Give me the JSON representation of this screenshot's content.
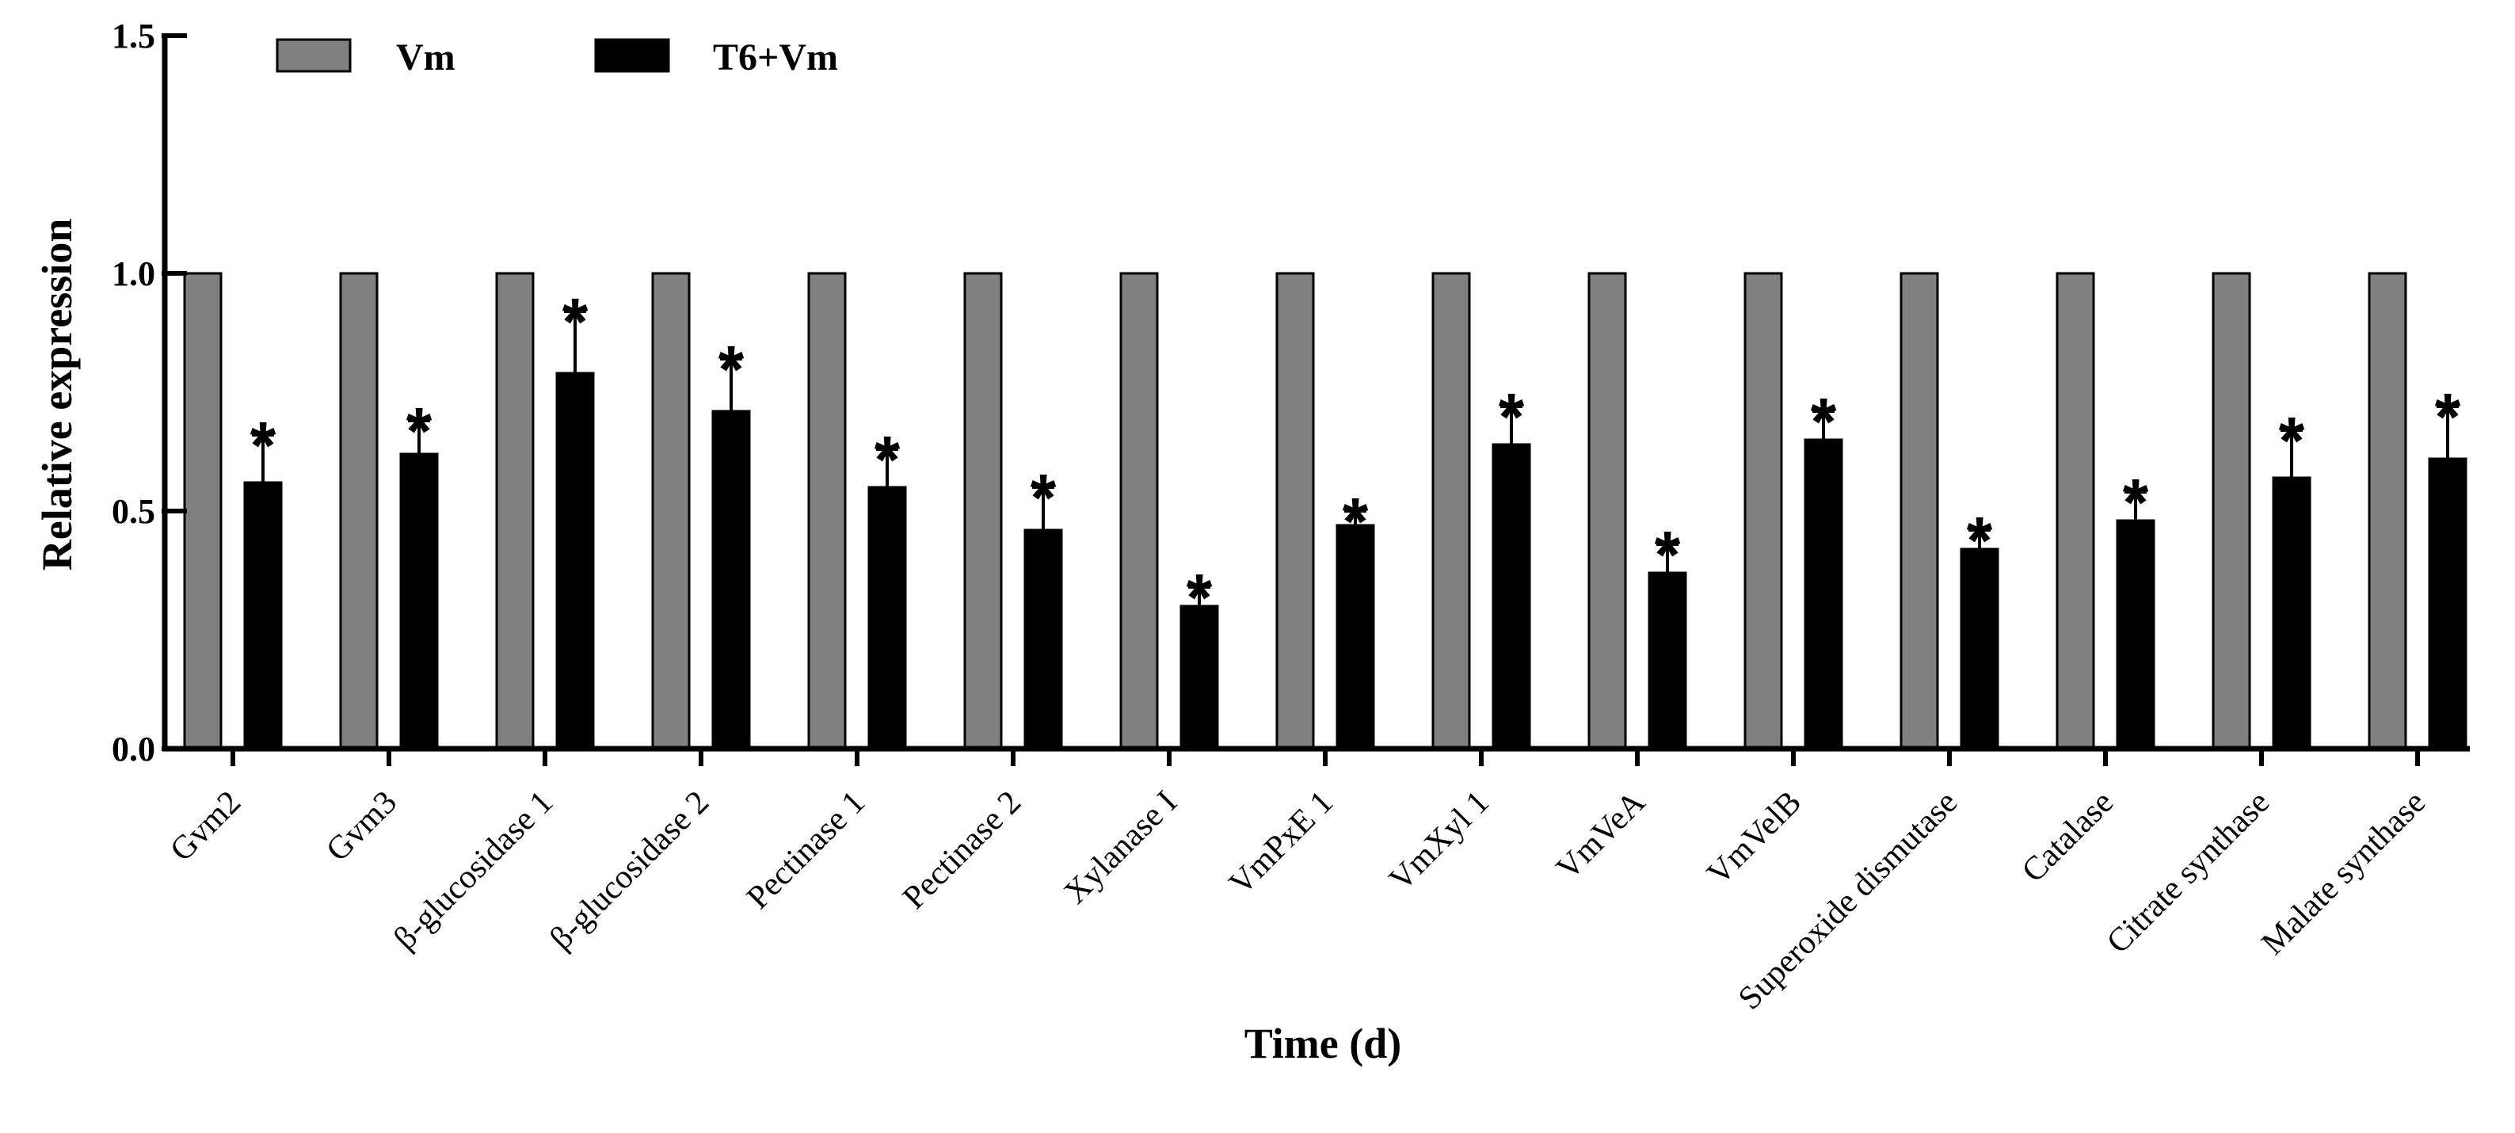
{
  "chart_data": {
    "type": "bar",
    "title": "",
    "xlabel": "Time (d)",
    "ylabel": "Relative expression",
    "ylim": [
      0,
      1.5
    ],
    "yticks": [
      "0.0",
      "0.5",
      "1.0",
      "1.5"
    ],
    "ytick_values": [
      0,
      0.5,
      1.0,
      1.5
    ],
    "legend_position": "top-left",
    "categories": [
      "Gvm2",
      "Gvm3",
      "β-glucosidase 1",
      "β-glucosidase 2",
      "Pectinase 1",
      "Pectinase 2",
      "Xylanase  I",
      "VmPxE 1",
      "VmXyl 1",
      "VmVeA",
      "VmVelB",
      "Superoxide dismutase",
      "Catalase",
      "Citrate synthase",
      "Malate synthase"
    ],
    "series": [
      {
        "name": "Vm",
        "color": "#808080",
        "values": [
          1,
          1,
          1,
          1,
          1,
          1,
          1,
          1,
          1,
          1,
          1,
          1,
          1,
          1,
          1
        ],
        "errors": [
          0,
          0,
          0,
          0,
          0,
          0,
          0,
          0,
          0,
          0,
          0,
          0,
          0,
          0,
          0
        ]
      },
      {
        "name": "T6+Vm",
        "color": "#000000",
        "values": [
          0.56,
          0.62,
          0.79,
          0.71,
          0.55,
          0.46,
          0.3,
          0.47,
          0.64,
          0.37,
          0.65,
          0.42,
          0.48,
          0.57,
          0.61
        ],
        "errors": [
          0.1,
          0.07,
          0.13,
          0.11,
          0.08,
          0.09,
          0.04,
          0.03,
          0.08,
          0.06,
          0.06,
          0.04,
          0.06,
          0.1,
          0.11
        ],
        "significance": [
          "*",
          "*",
          "*",
          "*",
          "*",
          "*",
          "*",
          "*",
          "*",
          "*",
          "*",
          "*",
          "*",
          "*",
          "*"
        ]
      }
    ]
  }
}
